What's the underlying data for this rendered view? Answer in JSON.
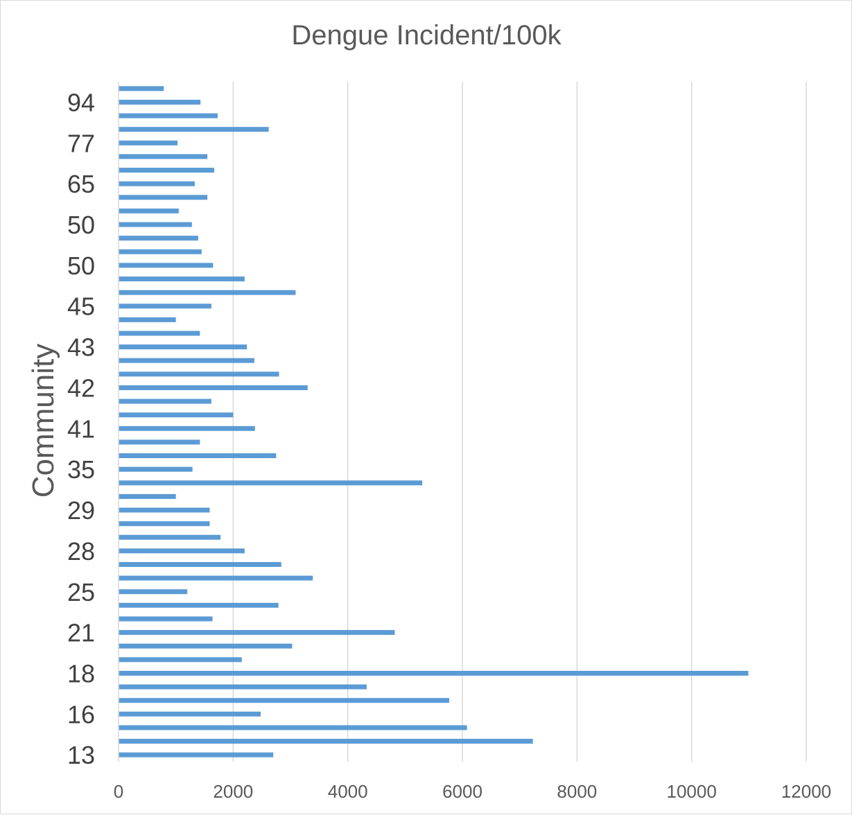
{
  "chart_data": {
    "type": "bar",
    "orientation": "horizontal",
    "title": "Dengue Incident/100k",
    "xlabel": "",
    "ylabel": "Community",
    "xlim": [
      0,
      12000
    ],
    "x_ticks": [
      0,
      2000,
      4000,
      6000,
      8000,
      10000,
      12000
    ],
    "x_tick_labels": [
      "0",
      "2000",
      "4000",
      "6000",
      "8000",
      "10000",
      "12000"
    ],
    "grid": "vertical",
    "legend": "none",
    "bar_color": "#5b9bd5",
    "y_tick_labels": [
      "13",
      "16",
      "18",
      "21",
      "25",
      "28",
      "29",
      "35",
      "41",
      "42",
      "43",
      "45",
      "50",
      "50",
      "65",
      "77",
      "94"
    ],
    "values": [
      2700,
      7230,
      6080,
      2480,
      5770,
      4330,
      10990,
      2150,
      3030,
      4820,
      1640,
      2790,
      1200,
      3390,
      2840,
      2200,
      1780,
      1590,
      1590,
      1000,
      5300,
      1290,
      2750,
      1420,
      2380,
      2000,
      1620,
      3300,
      2800,
      2370,
      2240,
      1420,
      1000,
      1620,
      3090,
      2200,
      1650,
      1450,
      1390,
      1280,
      1050,
      1550,
      1330,
      1670,
      1550,
      1030,
      2620,
      1730,
      1430,
      790
    ]
  }
}
